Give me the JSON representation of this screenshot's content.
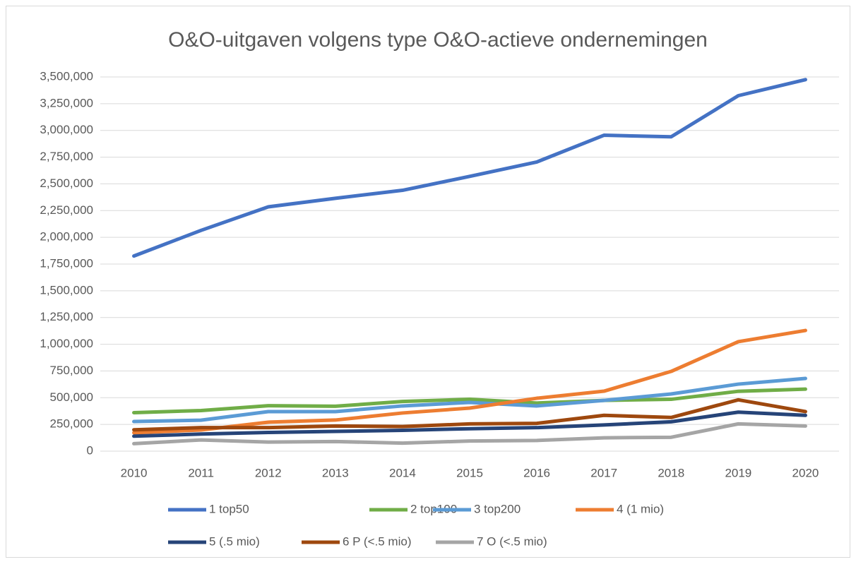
{
  "chart_data": {
    "type": "line",
    "title": "O&O-uitgaven volgens type O&O-actieve ondernemingen",
    "categories": [
      "2010",
      "2011",
      "2012",
      "2013",
      "2014",
      "2015",
      "2016",
      "2017",
      "2018",
      "2019",
      "2020"
    ],
    "series": [
      {
        "name": "1 top50",
        "color": "#4472c4",
        "values": [
          1825000,
          2065000,
          2285000,
          2365000,
          2440000,
          2570000,
          2705000,
          2955000,
          2940000,
          3325000,
          3475000
        ]
      },
      {
        "name": "2 top100",
        "color": "#70ad47",
        "values": [
          360000,
          380000,
          425000,
          420000,
          465000,
          485000,
          450000,
          475000,
          485000,
          560000,
          580000
        ]
      },
      {
        "name": "3 top200",
        "color": "#5b9bd5",
        "values": [
          277000,
          290000,
          370000,
          370000,
          423000,
          456000,
          423000,
          475000,
          535000,
          627000,
          680000
        ]
      },
      {
        "name": "4 (1 mio)",
        "color": "#ed7d31",
        "values": [
          172000,
          198000,
          271000,
          291000,
          357000,
          403000,
          495000,
          561000,
          746000,
          1024000,
          1129000
        ]
      },
      {
        "name": "5 (.5 mio)",
        "color": "#264478",
        "values": [
          140000,
          160000,
          175000,
          185000,
          195000,
          210000,
          220000,
          245000,
          275000,
          365000,
          335000
        ]
      },
      {
        "name": "6 P (<.5 mio)",
        "color": "#9e480e",
        "values": [
          200000,
          220000,
          220000,
          235000,
          230000,
          255000,
          260000,
          335000,
          315000,
          480000,
          370000
        ]
      },
      {
        "name": "7 O (<.5 mio)",
        "color": "#a5a5a5",
        "values": [
          70000,
          105000,
          85000,
          90000,
          75000,
          95000,
          100000,
          125000,
          130000,
          255000,
          235000
        ]
      }
    ],
    "ylim": [
      0,
      3500000
    ],
    "yticks": [
      0,
      {
        "value": 250000,
        "label": "250,000"
      },
      {
        "value": 500000,
        "label": "500,000"
      },
      {
        "value": 750000,
        "label": "750,000"
      },
      {
        "value": 1000000,
        "label": "1,000,000"
      },
      {
        "value": 1250000,
        "label": "1,250,000"
      },
      {
        "value": 1500000,
        "label": "1,500,000"
      },
      {
        "value": 1750000,
        "label": "1,750,000"
      },
      {
        "value": 2000000,
        "label": "2,000,000"
      },
      {
        "value": 2250000,
        "label": "2,250,000"
      },
      {
        "value": 2500000,
        "label": "2,500,000"
      },
      {
        "value": 2750000,
        "label": "2,750,000"
      },
      {
        "value": 3000000,
        "label": "3,000,000"
      },
      {
        "value": 3250000,
        "label": "3,250,000"
      },
      {
        "value": 3500000,
        "label": "3,500,000"
      }
    ],
    "grid": true,
    "legend": "bottom"
  }
}
